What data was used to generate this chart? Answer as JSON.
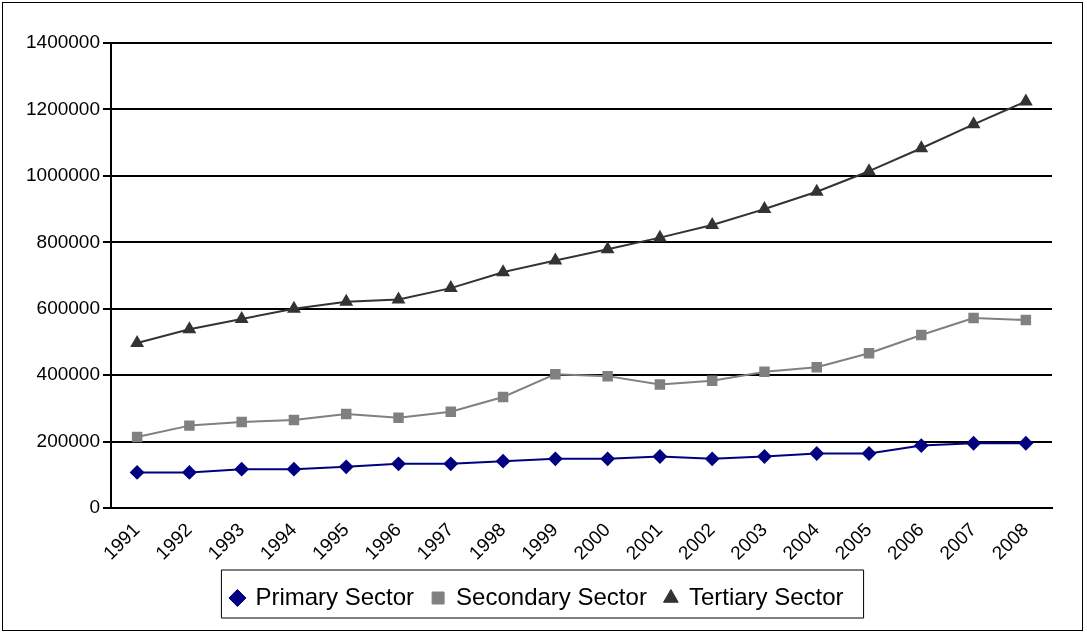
{
  "chart_data": {
    "type": "line",
    "categories": [
      "1991",
      "1992",
      "1993",
      "1994",
      "1995",
      "1996",
      "1997",
      "1998",
      "1999",
      "2000",
      "2001",
      "2002",
      "2003",
      "2004",
      "2005",
      "2006",
      "2007",
      "2008"
    ],
    "series": [
      {
        "name": "Primary Sector",
        "color": "#000080",
        "marker": "diamond",
        "values": [
          107000,
          107000,
          117000,
          117000,
          124000,
          133000,
          133000,
          141000,
          148000,
          148000,
          155000,
          148000,
          155000,
          164000,
          164000,
          188000,
          195000,
          195000
        ]
      },
      {
        "name": "Secondary Sector",
        "color": "#808080",
        "marker": "square",
        "values": [
          214000,
          248000,
          259000,
          265000,
          283000,
          272000,
          290000,
          334000,
          403000,
          397000,
          372000,
          383000,
          410000,
          424000,
          466000,
          521000,
          572000,
          566000
        ]
      },
      {
        "name": "Tertiary Sector",
        "color": "#333333",
        "marker": "triangle",
        "values": [
          497000,
          538000,
          569000,
          600000,
          621000,
          628000,
          662000,
          710000,
          745000,
          779000,
          814000,
          852000,
          900000,
          952000,
          1014000,
          1083000,
          1155000,
          1224000
        ]
      }
    ],
    "ylim": [
      0,
      1400000
    ],
    "yticks": [
      0,
      200000,
      400000,
      600000,
      800000,
      1000000,
      1200000,
      1400000
    ],
    "grid": "y",
    "legend": "bottom",
    "line_style": "solid"
  }
}
